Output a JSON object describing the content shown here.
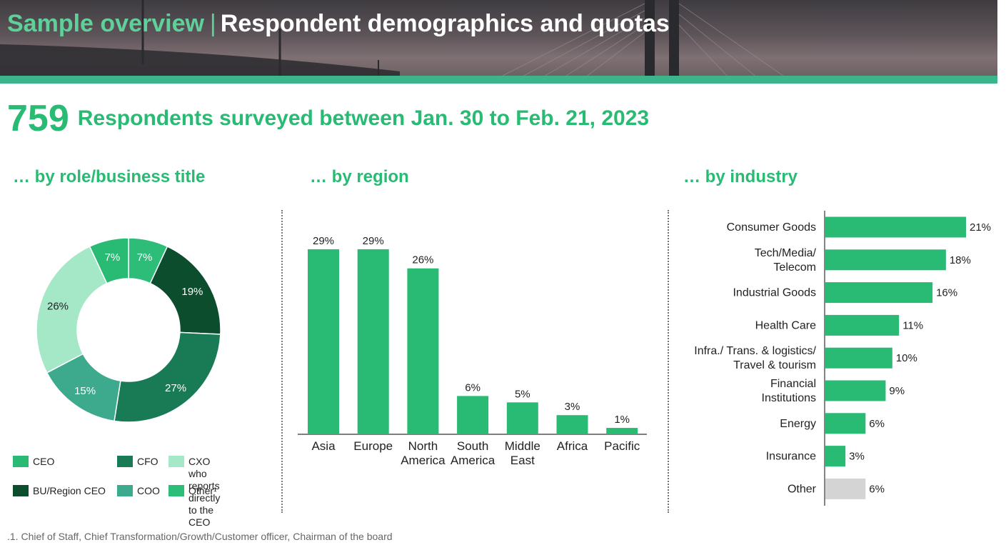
{
  "header": {
    "section": "Sample overview",
    "separator": "|",
    "title": "Respondent demographics and quotas"
  },
  "headline": {
    "count": "759",
    "text": "Respondents surveyed between Jan. 30 to Feb. 21, 2023"
  },
  "colors": {
    "brand_green": "#29ba74",
    "banner_bar": "#3db58a",
    "ceo": "#29ba74",
    "bu_region_ceo": "#0b4d2c",
    "cfo": "#197a56",
    "coo": "#3eaa8d",
    "cxo": "#a5e8c8",
    "other": "#2dbd79",
    "other_industry": "#d4d4d4"
  },
  "role_legend": [
    {
      "label": "CEO",
      "color": "#29ba74"
    },
    {
      "label": "CFO",
      "color": "#197a56"
    },
    {
      "label": "CXO who reports\ndirectly to the CEO",
      "color": "#a5e8c8"
    },
    {
      "label": "BU/Region CEO",
      "color": "#0b4d2c"
    },
    {
      "label": "COO",
      "color": "#3eaa8d"
    },
    {
      "label": "Other¹",
      "color": "#2dbd79"
    }
  ],
  "footnote": ".1. Chief of Staff, Chief Transformation/Growth/Customer officer, Chairman of the board",
  "chart_data": [
    {
      "type": "pie",
      "title": "… by role/business title",
      "donut": true,
      "slices": [
        {
          "label": "Other¹",
          "value": 7,
          "display": "7%",
          "color": "#2dbd79"
        },
        {
          "label": "BU/Region CEO",
          "value": 19,
          "display": "19%",
          "color": "#0b4d2c"
        },
        {
          "label": "CFO",
          "value": 27,
          "display": "27%",
          "color": "#197a56"
        },
        {
          "label": "COO",
          "value": 15,
          "display": "15%",
          "color": "#3eaa8d"
        },
        {
          "label": "CXO who reports directly to the CEO",
          "value": 26,
          "display": "26%",
          "color": "#a5e8c8"
        },
        {
          "label": "CEO",
          "value": 7,
          "display": "7%",
          "color": "#29ba74"
        }
      ]
    },
    {
      "type": "bar",
      "title": "… by region",
      "categories": [
        "Asia",
        "Europe",
        "North\nAmerica",
        "South\nAmerica",
        "Middle\nEast",
        "Africa",
        "Pacific"
      ],
      "values": [
        29,
        29,
        26,
        6,
        5,
        3,
        1
      ],
      "labels": [
        "29%",
        "29%",
        "26%",
        "6%",
        "5%",
        "3%",
        "1%"
      ],
      "color": "#29ba74",
      "ylim": [
        0,
        30
      ]
    },
    {
      "type": "bar",
      "orientation": "horizontal",
      "title": "… by industry",
      "categories": [
        "Consumer Goods",
        "Tech/Media/\nTelecom",
        "Industrial Goods",
        "Health Care",
        "Infra./ Trans. & logistics/\nTravel & tourism",
        "Financial\nInstitutions",
        "Energy",
        "Insurance",
        "Other"
      ],
      "values": [
        21,
        18,
        16,
        11,
        10,
        9,
        6,
        3,
        6
      ],
      "labels": [
        "21%",
        "18%",
        "16%",
        "11%",
        "10%",
        "9%",
        "6%",
        "3%",
        "6%"
      ],
      "colors": [
        "#29ba74",
        "#29ba74",
        "#29ba74",
        "#29ba74",
        "#29ba74",
        "#29ba74",
        "#29ba74",
        "#29ba74",
        "#d4d4d4"
      ],
      "xlim": [
        0,
        21
      ]
    }
  ]
}
